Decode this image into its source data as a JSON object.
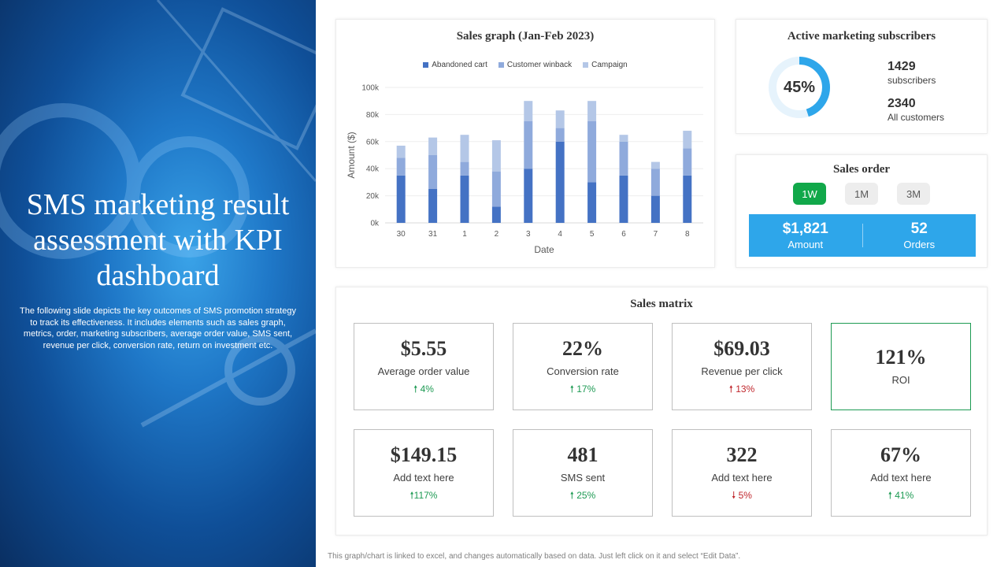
{
  "hero": {
    "title": "SMS marketing result assessment with KPI dashboard",
    "description": "The following slide depicts the key outcomes of SMS promotion strategy to track its effectiveness. It includes elements such as sales graph, metrics, order, marketing subscribers, average order value, SMS  sent, revenue per click, conversion rate, return on investment etc."
  },
  "chart_data": {
    "type": "bar",
    "stacked": true,
    "title": "Sales graph (Jan-Feb 2023)",
    "xlabel": "Date",
    "ylabel": "Amount  ($)",
    "categories": [
      "30",
      "31",
      "1",
      "2",
      "3",
      "4",
      "5",
      "6",
      "7",
      "8"
    ],
    "ylim": [
      0,
      100000
    ],
    "yticks": [
      "0k",
      "20k",
      "40k",
      "60k",
      "80k",
      "100k"
    ],
    "legend_position": "top",
    "series": [
      {
        "name": "Abandoned cart",
        "color": "#4472c4",
        "values": [
          35000,
          25000,
          35000,
          12000,
          40000,
          60000,
          30000,
          35000,
          20000,
          35000
        ]
      },
      {
        "name": "Customer winback",
        "color": "#8faadc",
        "values": [
          13000,
          25000,
          10000,
          26000,
          35000,
          10000,
          45000,
          25000,
          20000,
          20000
        ]
      },
      {
        "name": "Campaign",
        "color": "#b4c7e7",
        "values": [
          9000,
          13000,
          20000,
          23000,
          15000,
          13000,
          15000,
          5000,
          5000,
          13000
        ]
      }
    ]
  },
  "subscribers": {
    "title": "Active marketing subscribers",
    "percent_label": "45%",
    "percent": 45,
    "subs_value": "1429",
    "subs_label": "subscribers",
    "customers_value": "2340",
    "customers_label": "All customers",
    "ring_color": "#2ea6ea",
    "track_color": "#e6f3fc"
  },
  "order": {
    "title": "Sales order",
    "tabs": [
      "1W",
      "1M",
      "3M"
    ],
    "active_tab": "1W",
    "amount_value": "$1,821",
    "amount_label": "Amount",
    "orders_value": "52",
    "orders_label": "Orders"
  },
  "matrix": {
    "title": "Sales matrix",
    "kpis": [
      {
        "value": "$5.55",
        "label": "Average  order value",
        "arrow": "🠕",
        "change": "4%",
        "dir": "up"
      },
      {
        "value": "22%",
        "label": "Conversion  rate",
        "arrow": "🠕",
        "change": "17%",
        "dir": "up"
      },
      {
        "value": "$69.03",
        "label": "Revenue  per click",
        "arrow": "🠕",
        "change": "13%",
        "dir": "down"
      },
      {
        "value": "121%",
        "label": "ROI",
        "arrow": "",
        "change": "",
        "dir": "none"
      },
      {
        "value": "$149.15",
        "label": "Add text here",
        "arrow": "🠕",
        "change": "117%",
        "dir": "up"
      },
      {
        "value": "481",
        "label": "SMS sent",
        "arrow": "🠕",
        "change": "25%",
        "dir": "up"
      },
      {
        "value": "322",
        "label": "Add text here",
        "arrow": "🠗",
        "change": "5%",
        "dir": "down"
      },
      {
        "value": "67%",
        "label": "Add text here",
        "arrow": "🠕",
        "change": "41%",
        "dir": "up"
      }
    ]
  },
  "footer": "This graph/chart is linked to excel, and changes automatically based on data. Just left click on it and select “Edit Data”."
}
